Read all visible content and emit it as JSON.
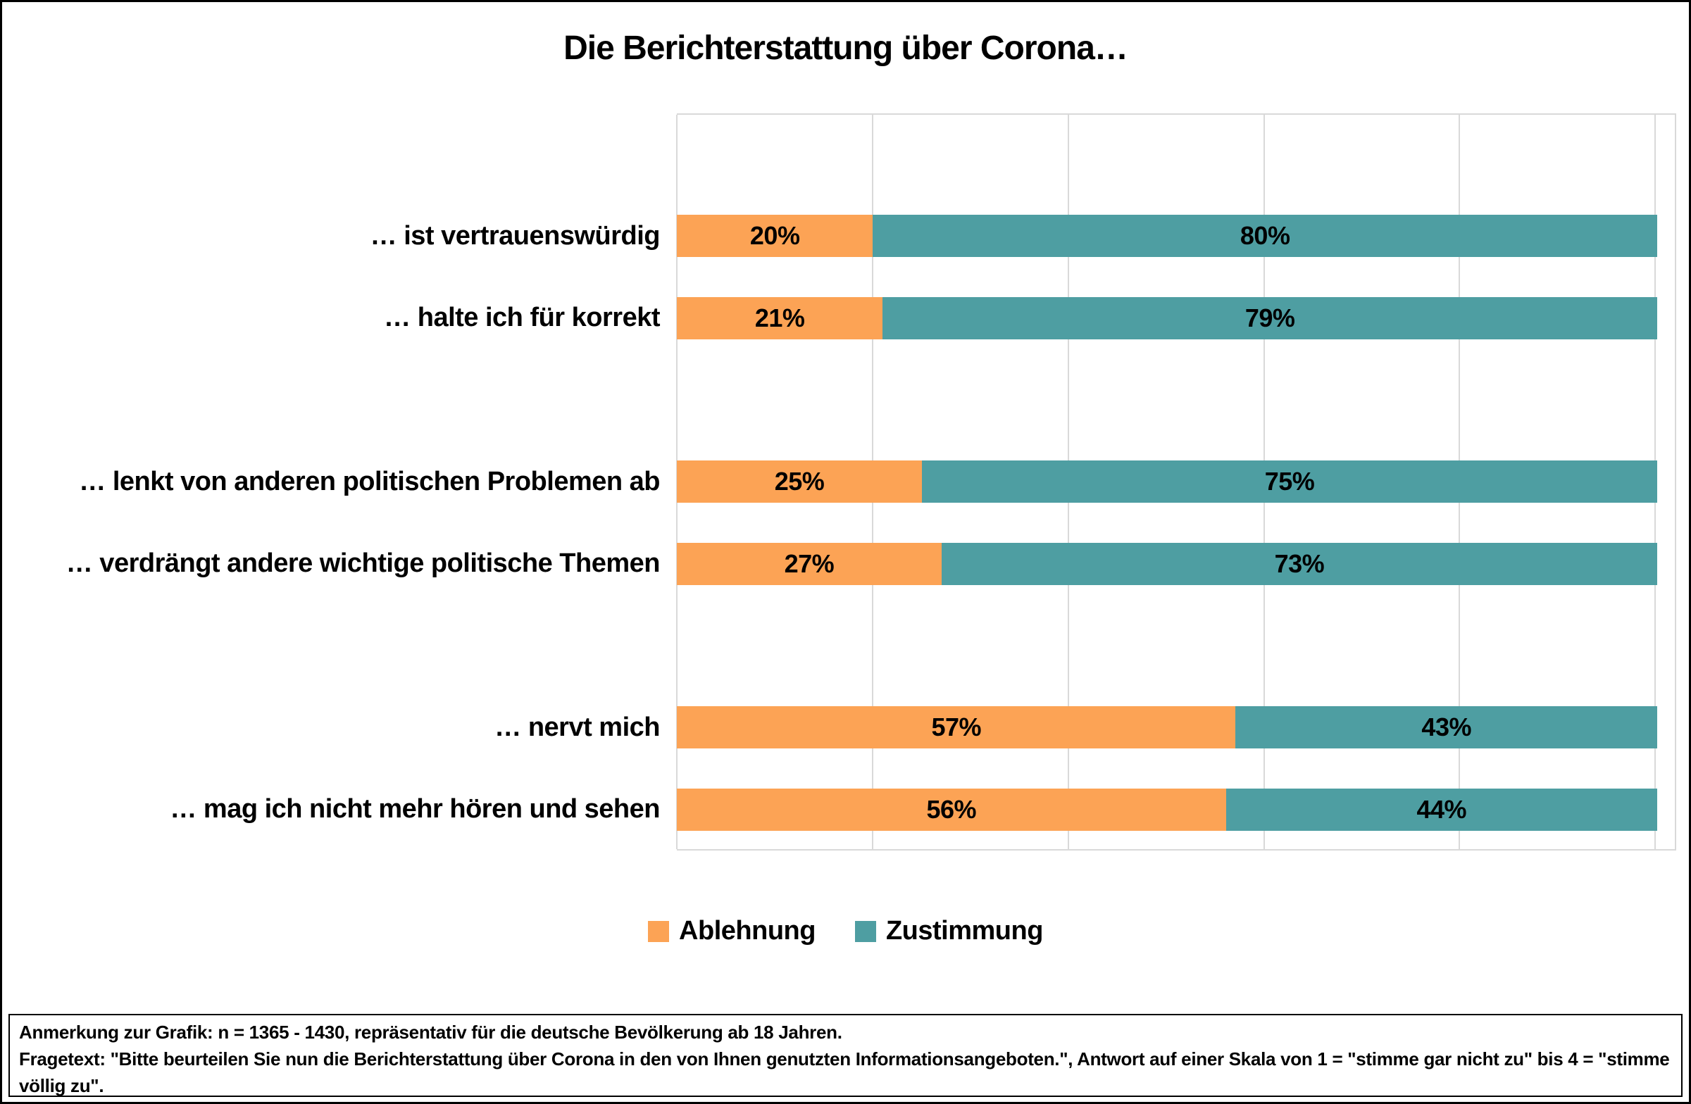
{
  "chart_data": {
    "type": "bar",
    "orientation": "horizontal",
    "stacked": true,
    "title": "Die Berichterstattung über Corona…",
    "unit": "%",
    "categories": [
      "… ist vertrauenswürdig",
      "… halte ich für korrekt",
      "… lenkt von anderen politischen Problemen ab",
      "… verdrängt andere wichtige politische Themen",
      "… nervt mich",
      "… mag ich nicht mehr hören und sehen"
    ],
    "series": [
      {
        "name": "Ablehnung",
        "color": "#FCA355",
        "values": [
          20,
          21,
          25,
          27,
          57,
          56
        ]
      },
      {
        "name": "Zustimmung",
        "color": "#4E9EA2",
        "values": [
          80,
          79,
          75,
          73,
          43,
          44
        ]
      }
    ],
    "groups": [
      [
        0,
        1
      ],
      [
        2,
        3
      ],
      [
        4,
        5
      ]
    ],
    "axis": {
      "min": 0,
      "max": 102,
      "gridline_step": 20,
      "gridlines": [
        0,
        20,
        40,
        60,
        80,
        100
      ],
      "tick_labels_visible": false
    },
    "value_labels": "inside-center",
    "legend_position": "bottom",
    "grid": true,
    "gridline_color": "#D9D9D9"
  },
  "footnote": {
    "line1": "Anmerkung zur Grafik: n = 1365 - 1430, repräsentativ für die deutsche Bevölkerung ab 18 Jahren.",
    "line2": "Fragetext: \"Bitte beurteilen Sie nun die Berichterstattung über Corona in den von Ihnen genutzten Informationsangeboten.\", Antwort auf einer Skala von 1 = \"stimme gar nicht zu\" bis 4 = \"stimme völlig zu\"."
  }
}
